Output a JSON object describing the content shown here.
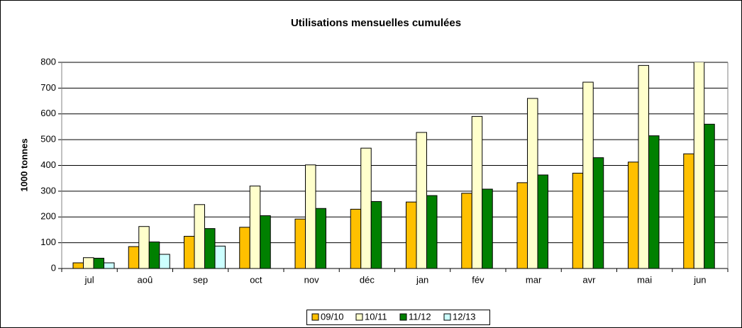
{
  "chart_data": {
    "type": "bar",
    "title": "Utilisations mensuelles cumulées",
    "y_label": "1000 tonnes",
    "categories": [
      "jul",
      "aoû",
      "sep",
      "oct",
      "nov",
      "déc",
      "jan",
      "fév",
      "mar",
      "avr",
      "mai",
      "jun"
    ],
    "series": [
      {
        "name": "09/10",
        "color": "#ffc000",
        "values": [
          22,
          85,
          125,
          160,
          192,
          230,
          258,
          292,
          333,
          370,
          413,
          445
        ]
      },
      {
        "name": "10/11",
        "color": "#ffffcc",
        "values": [
          42,
          163,
          248,
          320,
          402,
          467,
          528,
          590,
          660,
          723,
          788,
          850
        ]
      },
      {
        "name": "11/12",
        "color": "#008000",
        "values": [
          40,
          103,
          155,
          205,
          233,
          260,
          283,
          308,
          363,
          430,
          515,
          560
        ]
      },
      {
        "name": "12/13",
        "color": "#ccffff",
        "values": [
          22,
          55,
          87,
          null,
          null,
          null,
          null,
          null,
          null,
          null,
          null,
          null
        ]
      }
    ],
    "ylim": [
      0,
      800
    ],
    "yticks": [
      0,
      100,
      200,
      300,
      400,
      500,
      600,
      700,
      800
    ],
    "grid": true,
    "legend": "bottom"
  }
}
